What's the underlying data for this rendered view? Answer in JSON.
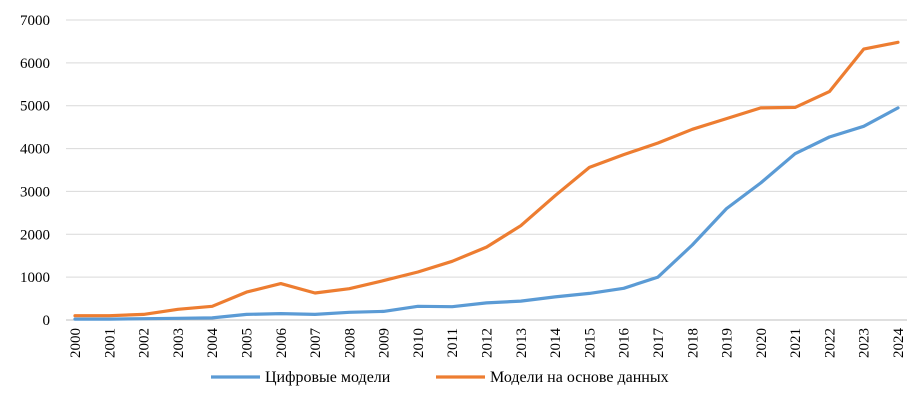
{
  "chart_data": {
    "type": "line",
    "title": "",
    "xlabel": "",
    "ylabel": "",
    "categories": [
      "2000",
      "2001",
      "2002",
      "2003",
      "2004",
      "2005",
      "2006",
      "2007",
      "2008",
      "2009",
      "2010",
      "2011",
      "2012",
      "2013",
      "2014",
      "2015",
      "2016",
      "2017",
      "2018",
      "2019",
      "2020",
      "2021",
      "2022",
      "2023",
      "2024"
    ],
    "ylim": [
      0,
      7000
    ],
    "yticks": [
      "0",
      "1000",
      "2000",
      "3000",
      "4000",
      "5000",
      "6000",
      "7000"
    ],
    "grid": "horizontal",
    "legend_position": "bottom",
    "series": [
      {
        "name": "Цифровые модели",
        "color": "#5b9bd5",
        "values": [
          20,
          20,
          30,
          40,
          50,
          130,
          150,
          130,
          180,
          200,
          320,
          310,
          400,
          440,
          540,
          620,
          740,
          1000,
          1750,
          2600,
          3200,
          3880,
          4270,
          4520,
          4950
        ]
      },
      {
        "name": "Модели на основе данных",
        "color": "#ed7d31",
        "values": [
          100,
          100,
          130,
          250,
          320,
          650,
          850,
          630,
          730,
          920,
          1120,
          1370,
          1700,
          2200,
          2900,
          3560,
          3860,
          4130,
          4450,
          4700,
          4950,
          4960,
          5330,
          6320,
          6480
        ]
      }
    ]
  }
}
